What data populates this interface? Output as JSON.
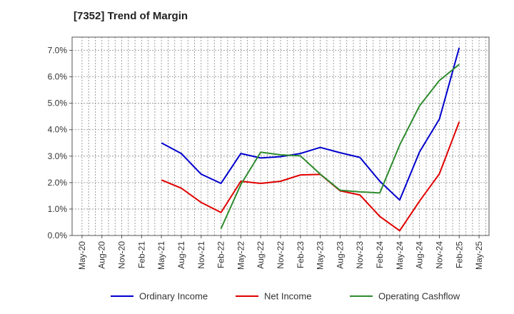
{
  "chart_data": {
    "type": "line",
    "title": "[7352]  Trend of Margin",
    "xlabel": "",
    "ylabel": "",
    "ylim": [
      0,
      7.5
    ],
    "y_ticks": [
      "0.0%",
      "1.0%",
      "2.0%",
      "3.0%",
      "4.0%",
      "5.0%",
      "6.0%",
      "7.0%"
    ],
    "y_tick_values": [
      0,
      1,
      2,
      3,
      4,
      5,
      6,
      7
    ],
    "categories": [
      "May-20",
      "Aug-20",
      "Nov-20",
      "Feb-21",
      "May-21",
      "Aug-21",
      "Nov-21",
      "Feb-22",
      "May-22",
      "Aug-22",
      "Nov-22",
      "Feb-23",
      "May-23",
      "Aug-23",
      "Nov-23",
      "Feb-24",
      "May-24",
      "Aug-24",
      "Nov-24",
      "Feb-25",
      "May-25"
    ],
    "grid": true,
    "legend_position": "bottom",
    "series": [
      {
        "name": "Ordinary Income",
        "color": "#0000cc",
        "values": [
          null,
          null,
          null,
          null,
          3.5,
          3.1,
          2.32,
          1.97,
          3.1,
          2.93,
          2.98,
          3.1,
          3.33,
          3.13,
          2.95,
          2.05,
          1.34,
          3.16,
          4.4,
          7.1,
          null
        ]
      },
      {
        "name": "Net Income",
        "color": "#e00000",
        "values": [
          null,
          null,
          null,
          null,
          2.1,
          1.79,
          1.25,
          0.87,
          2.05,
          1.97,
          2.05,
          2.29,
          2.31,
          1.69,
          1.53,
          0.72,
          0.18,
          1.3,
          2.33,
          4.3,
          null
        ]
      },
      {
        "name": "Operating Cashflow",
        "color": "#2e8b2e",
        "values": [
          null,
          null,
          null,
          null,
          null,
          null,
          null,
          0.26,
          1.93,
          3.15,
          3.05,
          3.01,
          2.32,
          1.71,
          1.65,
          1.61,
          3.42,
          4.9,
          5.86,
          6.47,
          null
        ]
      }
    ]
  }
}
